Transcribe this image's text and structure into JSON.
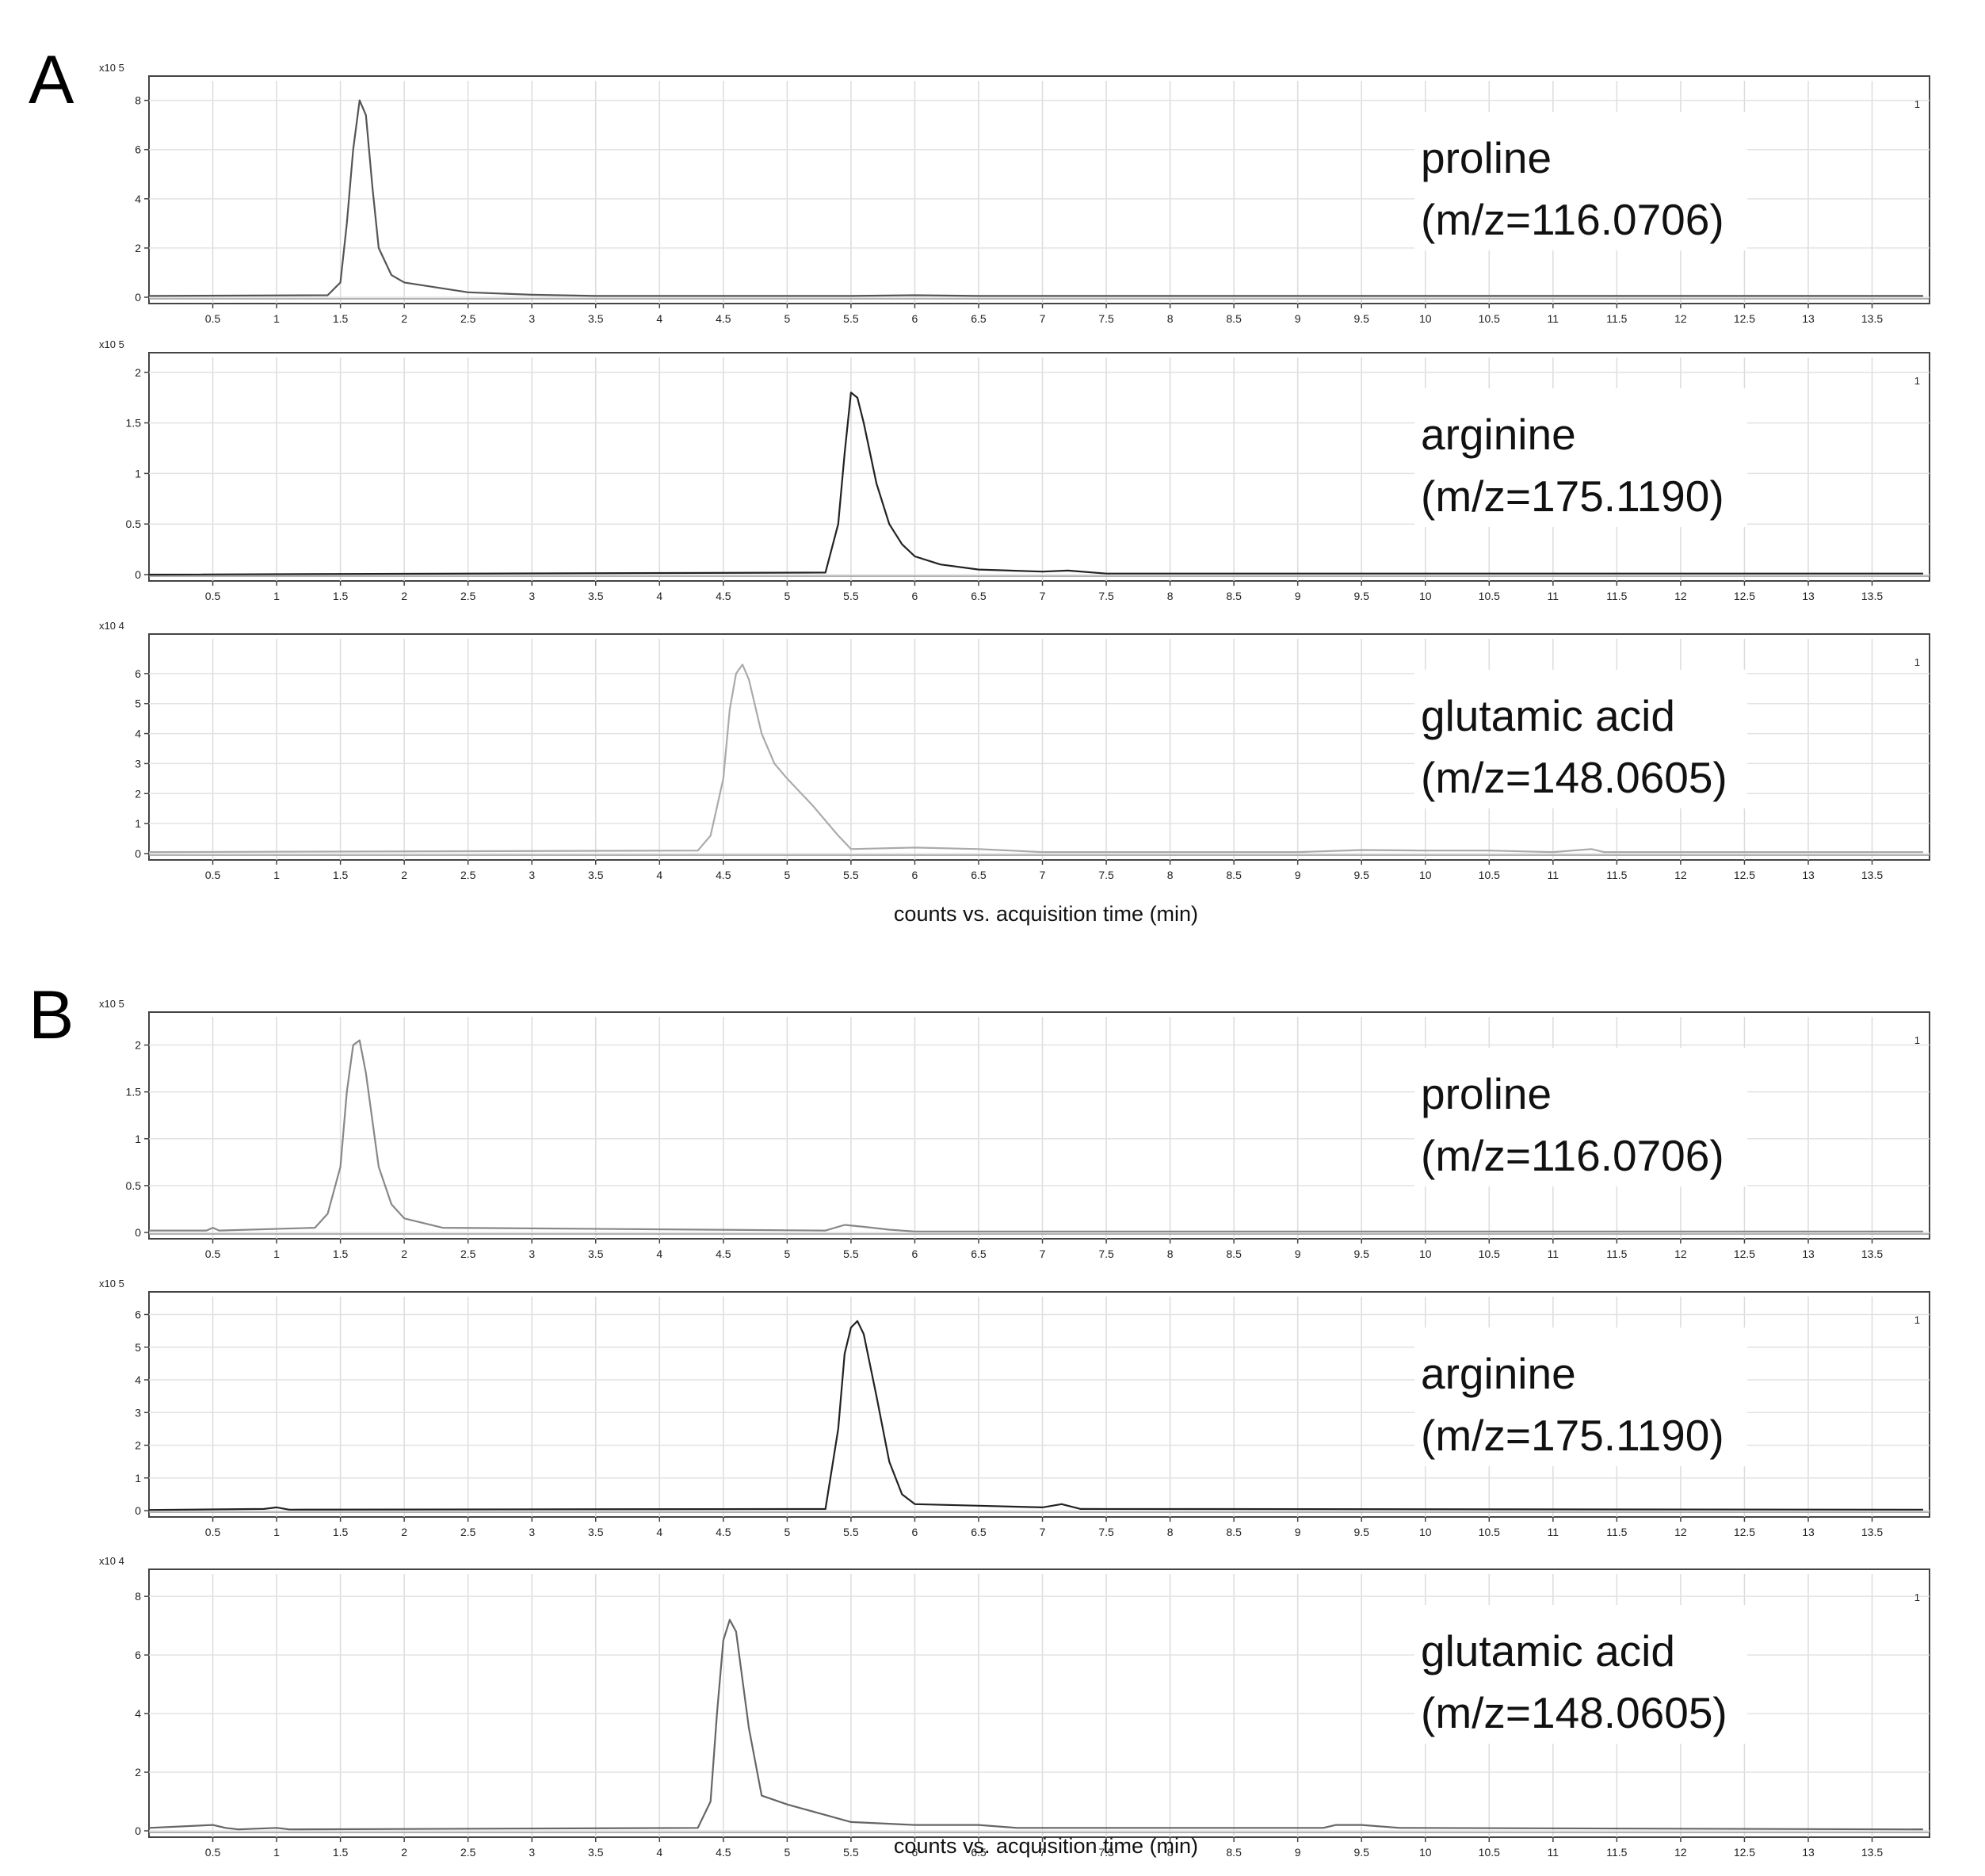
{
  "figure": {
    "x_axis_label": "counts vs. acquisition time (min)"
  },
  "chart_data": [
    {
      "panel": "A",
      "type": "line",
      "analyte": "proline",
      "mz": "(m/z=116.0706)",
      "y_multiplier": "x10 5",
      "multiplier_base": "x10",
      "multiplier_exp": "5",
      "corner_label": "1",
      "xlim": [
        0,
        13.95
      ],
      "ylim": [
        0,
        8.6
      ],
      "yticks": [
        0,
        2,
        4,
        6,
        8
      ],
      "ytick_labels": [
        "0",
        "2",
        "4",
        "6",
        "8"
      ],
      "xticks": [
        0.5,
        1,
        1.5,
        2,
        2.5,
        3,
        3.5,
        4,
        4.5,
        5,
        5.5,
        6,
        6.5,
        7,
        7.5,
        8,
        8.5,
        9,
        9.5,
        10,
        10.5,
        11,
        11.5,
        12,
        12.5,
        13,
        13.5
      ],
      "xtick_labels": [
        "0.5",
        "1",
        "1.5",
        "2",
        "2.5",
        "3",
        "3.5",
        "4",
        "4.5",
        "5",
        "5.5",
        "6",
        "6.5",
        "7",
        "7.5",
        "8",
        "8.5",
        "9",
        "9.5",
        "10",
        "10.5",
        "11",
        "11.5",
        "12",
        "12.5",
        "13",
        "13.5"
      ],
      "x": [
        0,
        1.4,
        1.5,
        1.55,
        1.6,
        1.65,
        1.7,
        1.75,
        1.8,
        1.9,
        2,
        2.5,
        3,
        3.5,
        5.5,
        6,
        6.5,
        13.9
      ],
      "y": [
        0.05,
        0.08,
        0.6,
        3,
        6,
        8,
        7.4,
        4.5,
        2,
        0.9,
        0.6,
        0.2,
        0.1,
        0.05,
        0.05,
        0.08,
        0.05,
        0.05
      ]
    },
    {
      "panel": "A",
      "type": "line",
      "analyte": "arginine",
      "mz": "(m/z=175.1190)",
      "y_multiplier": "x10 5",
      "multiplier_base": "x10",
      "multiplier_exp": "5",
      "corner_label": "1",
      "xlim": [
        0,
        13.95
      ],
      "ylim": [
        0,
        2.1
      ],
      "yticks": [
        0,
        0.5,
        1,
        1.5,
        2
      ],
      "ytick_labels": [
        "0",
        "0.5",
        "1",
        "1.5",
        "2"
      ],
      "xticks": [
        0.5,
        1,
        1.5,
        2,
        2.5,
        3,
        3.5,
        4,
        4.5,
        5,
        5.5,
        6,
        6.5,
        7,
        7.5,
        8,
        8.5,
        9,
        9.5,
        10,
        10.5,
        11,
        11.5,
        12,
        12.5,
        13,
        13.5
      ],
      "xtick_labels": [
        "0.5",
        "1",
        "1.5",
        "2",
        "2.5",
        "3",
        "3.5",
        "4",
        "4.5",
        "5",
        "5.5",
        "6",
        "6.5",
        "7",
        "7.5",
        "8",
        "8.5",
        "9",
        "9.5",
        "10",
        "10.5",
        "11",
        "11.5",
        "12",
        "12.5",
        "13",
        "13.5"
      ],
      "x": [
        0,
        5.3,
        5.4,
        5.45,
        5.5,
        5.55,
        5.6,
        5.7,
        5.8,
        5.9,
        6,
        6.2,
        6.5,
        7,
        7.2,
        7.5,
        13.9
      ],
      "y": [
        0,
        0.02,
        0.5,
        1.2,
        1.8,
        1.75,
        1.5,
        0.9,
        0.5,
        0.3,
        0.18,
        0.1,
        0.05,
        0.03,
        0.04,
        0.01,
        0.01
      ]
    },
    {
      "panel": "A",
      "type": "line",
      "analyte": "glutamic acid",
      "mz": "(m/z=148.0605)",
      "y_multiplier": "x10 4",
      "multiplier_base": "x10",
      "multiplier_exp": "4",
      "corner_label": "1",
      "xlim": [
        0,
        13.95
      ],
      "ylim": [
        0,
        7
      ],
      "yticks": [
        0,
        1,
        2,
        3,
        4,
        5,
        6
      ],
      "ytick_labels": [
        "0",
        "1",
        "2",
        "3",
        "4",
        "5",
        "6"
      ],
      "xticks": [
        0.5,
        1,
        1.5,
        2,
        2.5,
        3,
        3.5,
        4,
        4.5,
        5,
        5.5,
        6,
        6.5,
        7,
        7.5,
        8,
        8.5,
        9,
        9.5,
        10,
        10.5,
        11,
        11.5,
        12,
        12.5,
        13,
        13.5
      ],
      "xtick_labels": [
        "0.5",
        "1",
        "1.5",
        "2",
        "2.5",
        "3",
        "3.5",
        "4",
        "4.5",
        "5",
        "5.5",
        "6",
        "6.5",
        "7",
        "7.5",
        "8",
        "8.5",
        "9",
        "9.5",
        "10",
        "10.5",
        "11",
        "11.5",
        "12",
        "12.5",
        "13",
        "13.5"
      ],
      "x": [
        0,
        4.3,
        4.4,
        4.5,
        4.55,
        4.6,
        4.65,
        4.7,
        4.8,
        4.9,
        5,
        5.2,
        5.4,
        5.5,
        6,
        6.5,
        7,
        8,
        9,
        9.5,
        10,
        10.5,
        11,
        11.3,
        11.4,
        13.9
      ],
      "y": [
        0.05,
        0.1,
        0.6,
        2.5,
        4.8,
        6,
        6.3,
        5.8,
        4,
        3,
        2.5,
        1.6,
        0.6,
        0.15,
        0.2,
        0.15,
        0.05,
        0.05,
        0.05,
        0.12,
        0.1,
        0.1,
        0.05,
        0.15,
        0.05,
        0.05
      ]
    },
    {
      "panel": "B",
      "type": "line",
      "analyte": "proline",
      "mz": "(m/z=116.0706)",
      "y_multiplier": "x10 5",
      "multiplier_base": "x10",
      "multiplier_exp": "5",
      "corner_label": "1",
      "xlim": [
        0,
        13.95
      ],
      "ylim": [
        0,
        2.25
      ],
      "yticks": [
        0,
        0.5,
        1,
        1.5,
        2
      ],
      "ytick_labels": [
        "0",
        "0.5",
        "1",
        "1.5",
        "2"
      ],
      "xticks": [
        0.5,
        1,
        1.5,
        2,
        2.5,
        3,
        3.5,
        4,
        4.5,
        5,
        5.5,
        6,
        6.5,
        7,
        7.5,
        8,
        8.5,
        9,
        9.5,
        10,
        10.5,
        11,
        11.5,
        12,
        12.5,
        13,
        13.5
      ],
      "xtick_labels": [
        "0.5",
        "1",
        "1.5",
        "2",
        "2.5",
        "3",
        "3.5",
        "4",
        "4.5",
        "5",
        "5.5",
        "6",
        "6.5",
        "7",
        "7.5",
        "8",
        "8.5",
        "9",
        "9.5",
        "10",
        "10.5",
        "11",
        "11.5",
        "12",
        "12.5",
        "13",
        "13.5"
      ],
      "x": [
        0,
        0.45,
        0.5,
        0.55,
        1.3,
        1.4,
        1.5,
        1.55,
        1.6,
        1.65,
        1.7,
        1.8,
        1.9,
        2,
        2.3,
        5.3,
        5.45,
        5.6,
        5.8,
        6,
        13.9
      ],
      "y": [
        0.02,
        0.02,
        0.05,
        0.02,
        0.05,
        0.2,
        0.7,
        1.5,
        2,
        2.05,
        1.7,
        0.7,
        0.3,
        0.15,
        0.05,
        0.02,
        0.08,
        0.06,
        0.03,
        0.01,
        0.01
      ]
    },
    {
      "panel": "B",
      "type": "line",
      "analyte": "arginine",
      "mz": "(m/z=175.1190)",
      "y_multiplier": "x10 5",
      "multiplier_base": "x10",
      "multiplier_exp": "5",
      "corner_label": "1",
      "xlim": [
        0,
        13.95
      ],
      "ylim": [
        0,
        6.4
      ],
      "yticks": [
        0,
        1,
        2,
        3,
        4,
        5,
        6
      ],
      "ytick_labels": [
        "0",
        "1",
        "2",
        "3",
        "4",
        "5",
        "6"
      ],
      "xticks": [
        0.5,
        1,
        1.5,
        2,
        2.5,
        3,
        3.5,
        4,
        4.5,
        5,
        5.5,
        6,
        6.5,
        7,
        7.5,
        8,
        8.5,
        9,
        9.5,
        10,
        10.5,
        11,
        11.5,
        12,
        12.5,
        13,
        13.5
      ],
      "xtick_labels": [
        "0.5",
        "1",
        "1.5",
        "2",
        "2.5",
        "3",
        "3.5",
        "4",
        "4.5",
        "5",
        "5.5",
        "6",
        "6.5",
        "7",
        "7.5",
        "8",
        "8.5",
        "9",
        "9.5",
        "10",
        "10.5",
        "11",
        "11.5",
        "12",
        "12.5",
        "13",
        "13.5"
      ],
      "x": [
        0,
        0.9,
        1,
        1.1,
        5.3,
        5.4,
        5.45,
        5.5,
        5.55,
        5.6,
        5.7,
        5.8,
        5.9,
        6,
        6.5,
        7,
        7.15,
        7.3,
        13.9
      ],
      "y": [
        0.02,
        0.05,
        0.1,
        0.03,
        0.05,
        2.5,
        4.8,
        5.6,
        5.8,
        5.4,
        3.5,
        1.5,
        0.5,
        0.2,
        0.15,
        0.1,
        0.2,
        0.05,
        0.03
      ]
    },
    {
      "panel": "B",
      "type": "line",
      "analyte": "glutamic acid",
      "mz": "(m/z=148.0605)",
      "y_multiplier": "x10 4",
      "multiplier_base": "x10",
      "multiplier_exp": "4",
      "corner_label": "1",
      "xlim": [
        0,
        13.95
      ],
      "ylim": [
        0,
        8.6
      ],
      "yticks": [
        0,
        2,
        4,
        6,
        8
      ],
      "ytick_labels": [
        "0",
        "2",
        "4",
        "6",
        "8"
      ],
      "xticks": [
        0.5,
        1,
        1.5,
        2,
        2.5,
        3,
        3.5,
        4,
        4.5,
        5,
        5.5,
        6,
        6.5,
        7,
        7.5,
        8,
        8.5,
        9,
        9.5,
        10,
        10.5,
        11,
        11.5,
        12,
        12.5,
        13,
        13.5
      ],
      "xtick_labels": [
        "0.5",
        "1",
        "1.5",
        "2",
        "2.5",
        "3",
        "3.5",
        "4",
        "4.5",
        "5",
        "5.5",
        "6",
        "6.5",
        "7",
        "7.5",
        "8",
        "8.5",
        "9",
        "9.5",
        "10",
        "10.5",
        "11",
        "11.5",
        "12",
        "12.5",
        "13",
        "13.5"
      ],
      "x": [
        0,
        0.5,
        0.6,
        0.7,
        1,
        1.1,
        4.3,
        4.4,
        4.45,
        4.5,
        4.55,
        4.6,
        4.7,
        4.8,
        5,
        5.5,
        6,
        6.5,
        6.8,
        9.2,
        9.3,
        9.5,
        9.8,
        13.9
      ],
      "y": [
        0.1,
        0.2,
        0.1,
        0.05,
        0.1,
        0.05,
        0.1,
        1,
        4,
        6.5,
        7.2,
        6.8,
        3.5,
        1.2,
        0.9,
        0.3,
        0.2,
        0.2,
        0.1,
        0.1,
        0.2,
        0.2,
        0.1,
        0.05
      ]
    }
  ]
}
